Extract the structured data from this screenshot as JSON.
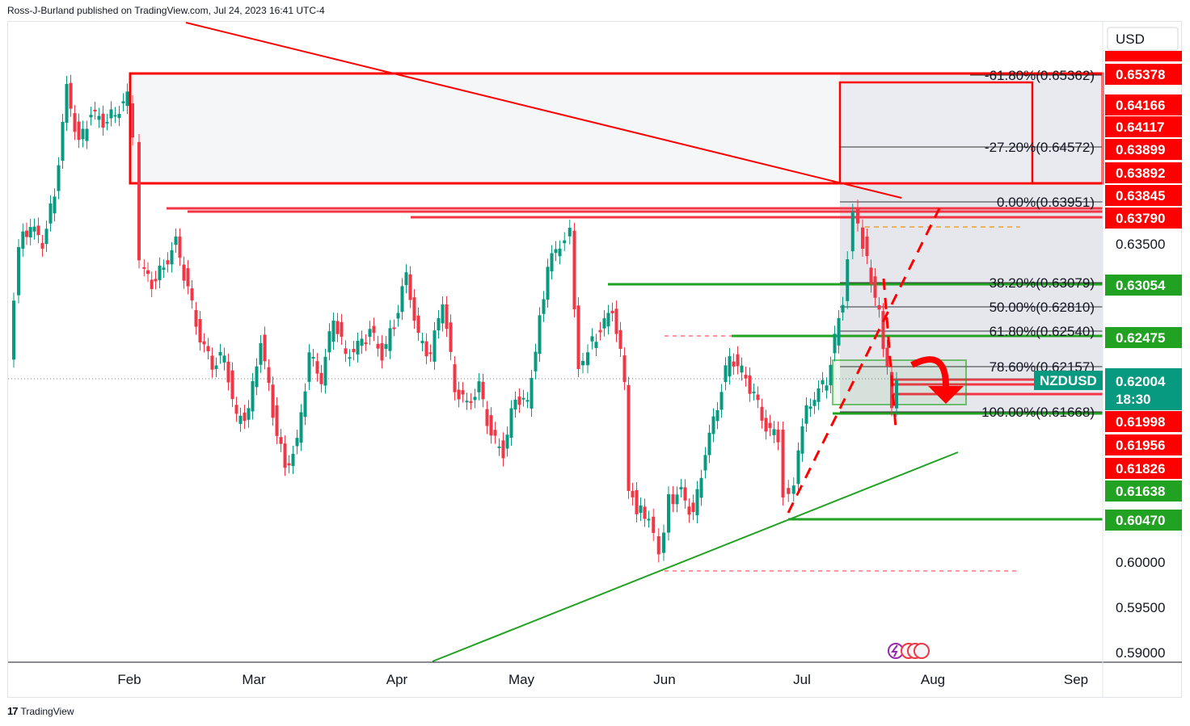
{
  "header": {
    "text": "Ross-J-Burland published on TradingView.com, Jul 24, 2023 16:41 UTC-4"
  },
  "footer": {
    "logo_icon": "tradingview-logo-icon",
    "brand": "TradingView"
  },
  "colors": {
    "up": "#089981",
    "down": "#f23645",
    "red": "#ff0000",
    "green": "#22a222",
    "gray": "#787b86"
  },
  "chart_data": {
    "type": "candlestick",
    "symbol": "NZDUSD",
    "currency": "USD",
    "countdown": "18:30",
    "last_price": 0.62004,
    "x_ticks": [
      "Feb",
      "Mar",
      "Apr",
      "May",
      "Jun",
      "Jul",
      "Aug",
      "Sep"
    ],
    "y_ticks": [
      "0.63500",
      "0.60000",
      "0.59500",
      "0.59000"
    ],
    "y_range": [
      0.5885,
      0.6595
    ],
    "price_labels": [
      {
        "text": "0.65378",
        "color": "red"
      },
      {
        "text": "0.64166",
        "color": "red"
      },
      {
        "text": "0.64117",
        "color": "red"
      },
      {
        "text": "0.63899",
        "color": "red"
      },
      {
        "text": "0.63892",
        "color": "red"
      },
      {
        "text": "0.63845",
        "color": "red"
      },
      {
        "text": "0.63790",
        "color": "red"
      },
      {
        "text": "0.63054",
        "color": "green"
      },
      {
        "text": "0.62475",
        "color": "green"
      },
      {
        "text": "0.61998",
        "color": "red"
      },
      {
        "text": "0.61956",
        "color": "red"
      },
      {
        "text": "0.61826",
        "color": "red"
      },
      {
        "text": "0.61638",
        "color": "green"
      },
      {
        "text": "0.60470",
        "color": "green"
      }
    ],
    "fib_levels": [
      {
        "text": "-61.80%(0.65362)"
      },
      {
        "text": "-27.20%(0.64572)"
      },
      {
        "text": "0.00%(0.63951)"
      },
      {
        "text": "38.20%(0.63079)"
      },
      {
        "text": "50.00%(0.62810)"
      },
      {
        "text": "61.80%(0.62540)"
      },
      {
        "text": "78.60%(0.62157)"
      },
      {
        "text": "100.00%(0.61668)"
      }
    ]
  }
}
